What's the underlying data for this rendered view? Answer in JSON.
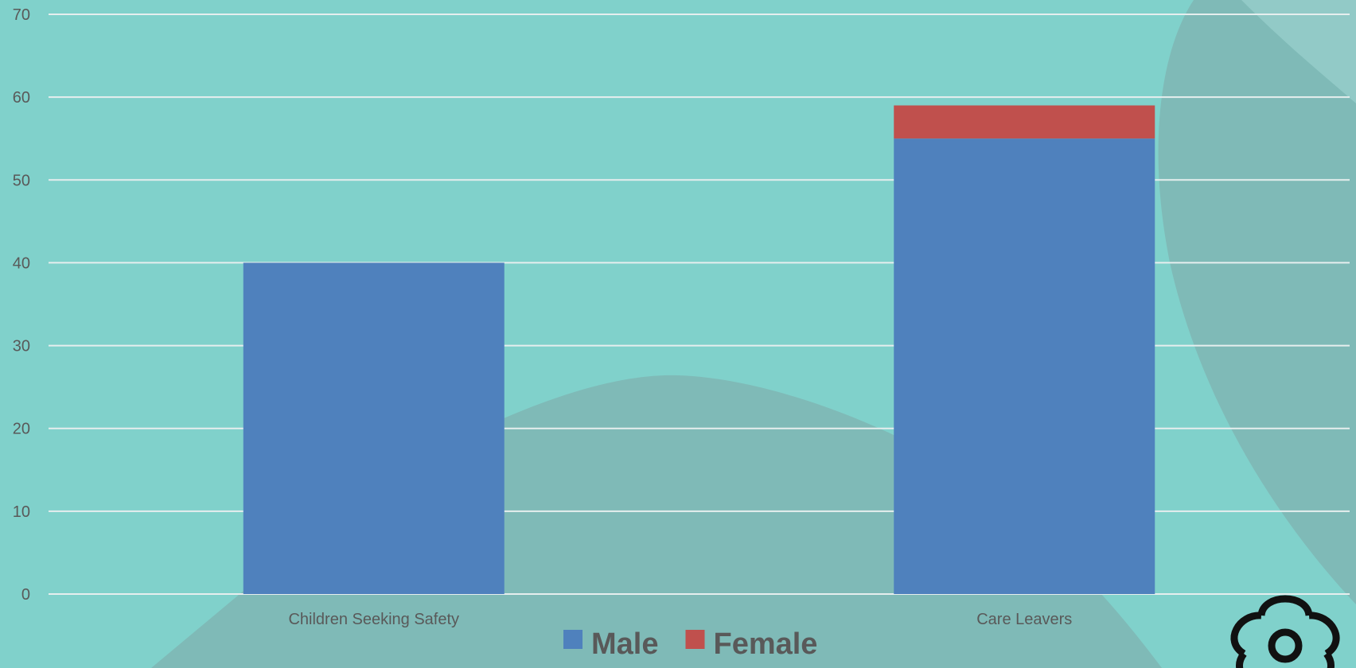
{
  "chart_data": {
    "type": "bar",
    "stacked": true,
    "categories": [
      "Children Seeking Safety",
      "Care Leavers"
    ],
    "series": [
      {
        "name": "Male",
        "color": "#4f81bd",
        "values": [
          40,
          55
        ]
      },
      {
        "name": "Female",
        "color": "#c0504d",
        "values": [
          0,
          4
        ]
      }
    ],
    "ylim": [
      0,
      70
    ],
    "yticks": [
      0,
      10,
      20,
      30,
      40,
      50,
      60,
      70
    ],
    "grid": true,
    "legend_position": "bottom",
    "xlabel": "",
    "ylabel": "",
    "title": ""
  },
  "colors": {
    "background": "#80d1cb",
    "background_shape": "#7fbab7",
    "gridline": "#e6eeee",
    "text": "#595959",
    "logo": "#111111"
  },
  "icons": {
    "logo": "flower-logo-icon"
  }
}
